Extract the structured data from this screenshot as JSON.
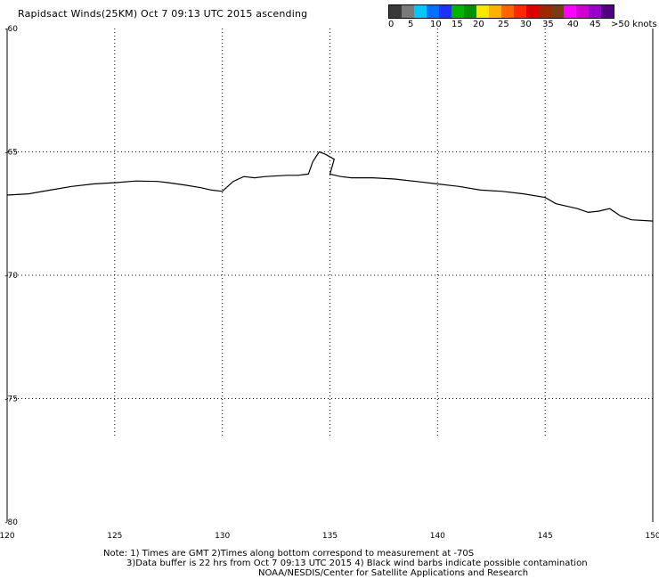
{
  "title": "Rapidsact Winds(25KM) Oct  7 09:13 UTC 2015 ascending",
  "colorbar": {
    "colors": [
      "#3a3a3a",
      "#7a7a7a",
      "#00c8ff",
      "#0070ff",
      "#2030ff",
      "#00b400",
      "#009000",
      "#ffe600",
      "#ffb000",
      "#ff6400",
      "#ff2800",
      "#e00000",
      "#a02800",
      "#7a3c14",
      "#ff00ff",
      "#d000d0",
      "#9600c8",
      "#500080"
    ],
    "labels": [
      "0",
      "5",
      "10",
      "15",
      "20",
      "25",
      "30",
      "35",
      "40",
      "45",
      ">50 knots"
    ]
  },
  "axes": {
    "x_ticks": [
      "120",
      "125",
      "130",
      "135",
      "140",
      "145",
      "150"
    ],
    "y_ticks": [
      "-60",
      "-65",
      "-70",
      "-75",
      "-80"
    ],
    "xlim": [
      120,
      150
    ],
    "ylim": [
      -80,
      -60
    ]
  },
  "notes": {
    "line1": "Note: 1) Times are GMT 2)Times along bottom correspond to measurement at -70S",
    "line2": "3)Data buffer is 22 hrs from Oct  7 09:13 UTC 2015 4) Black wind barbs indicate possible contamination",
    "line3": "NOAA/NESDIS/Center for Satellite Applications and Research"
  },
  "coastline": [
    [
      120.0,
      -66.75
    ],
    [
      121.0,
      -66.7
    ],
    [
      122.0,
      -66.55
    ],
    [
      123.0,
      -66.4
    ],
    [
      124.0,
      -66.3
    ],
    [
      125.0,
      -66.25
    ],
    [
      126.0,
      -66.18
    ],
    [
      127.0,
      -66.2
    ],
    [
      127.5,
      -66.25
    ],
    [
      128.3,
      -66.35
    ],
    [
      129.0,
      -66.45
    ],
    [
      129.5,
      -66.55
    ],
    [
      130.0,
      -66.6
    ],
    [
      130.5,
      -66.2
    ],
    [
      131.0,
      -66.0
    ],
    [
      131.5,
      -66.05
    ],
    [
      132.0,
      -66.0
    ],
    [
      133.0,
      -65.95
    ],
    [
      133.5,
      -65.95
    ],
    [
      134.0,
      -65.9
    ],
    [
      134.2,
      -65.4
    ],
    [
      134.5,
      -65.0
    ],
    [
      134.8,
      -65.1
    ],
    [
      135.2,
      -65.3
    ],
    [
      135.0,
      -65.9
    ],
    [
      135.5,
      -66.0
    ],
    [
      136.0,
      -66.05
    ],
    [
      137.0,
      -66.05
    ],
    [
      138.0,
      -66.1
    ],
    [
      139.0,
      -66.2
    ],
    [
      140.0,
      -66.3
    ],
    [
      141.0,
      -66.4
    ],
    [
      142.0,
      -66.55
    ],
    [
      143.0,
      -66.6
    ],
    [
      144.0,
      -66.7
    ],
    [
      145.0,
      -66.85
    ],
    [
      145.5,
      -67.1
    ],
    [
      146.0,
      -67.2
    ],
    [
      146.5,
      -67.3
    ],
    [
      147.0,
      -67.45
    ],
    [
      147.5,
      -67.4
    ],
    [
      148.0,
      -67.3
    ],
    [
      148.5,
      -67.6
    ],
    [
      149.0,
      -67.75
    ],
    [
      150.0,
      -67.8
    ]
  ]
}
